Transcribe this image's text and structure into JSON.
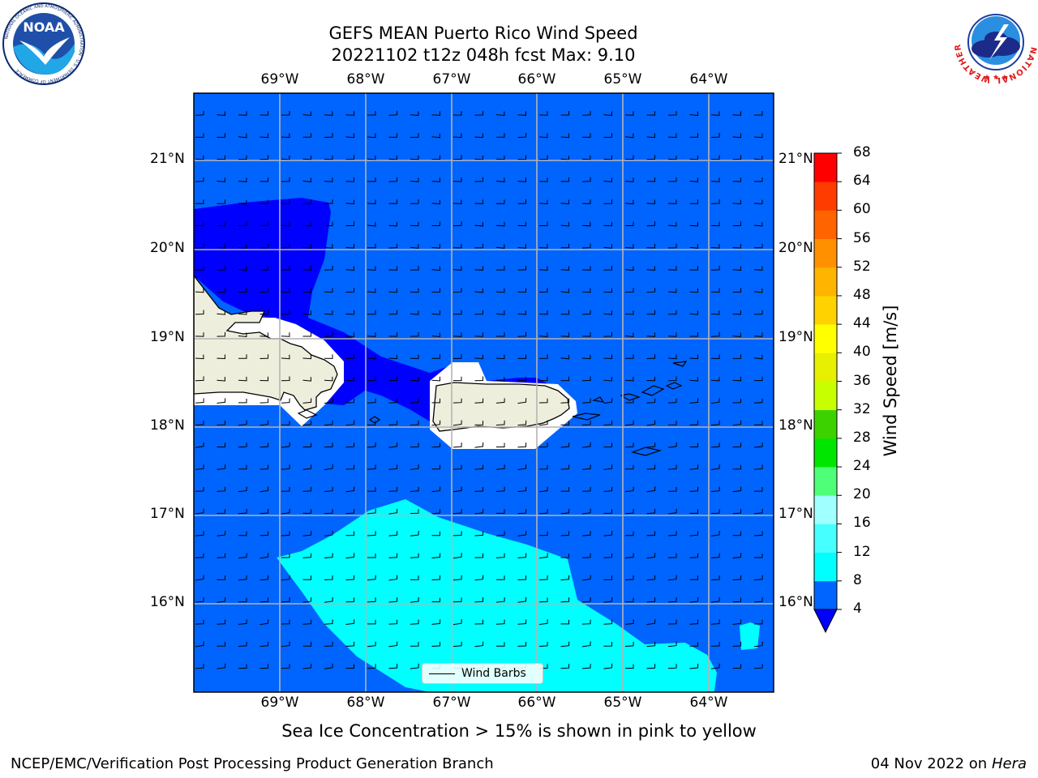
{
  "title": {
    "line1": "GEFS MEAN Puerto Rico Wind Speed",
    "line2": "20221102 t12z 048h fcst   Max: 9.10"
  },
  "logos": {
    "noaa": {
      "text": "NOAA",
      "ring_text": "NATIONAL OCEANIC AND ATMOSPHERIC ADMINISTRATION · U.S. DEPARTMENT OF COMMERCE"
    },
    "nws": {
      "ring_text": "NATIONAL WEATHER SERVICE"
    }
  },
  "map": {
    "lon_labels": [
      "69°W",
      "68°W",
      "67°W",
      "66°W",
      "65°W",
      "64°W"
    ],
    "lat_labels": [
      "21°N",
      "20°N",
      "19°N",
      "18°N",
      "17°N",
      "16°N"
    ],
    "colors": {
      "band_4_8": "#0064ff",
      "band_below_4": "#0000ff",
      "band_8_12": "#00ffff",
      "land": "#eeeedc",
      "masked": "#ffffff",
      "grid": "#b4b4b4"
    }
  },
  "legend": {
    "label": "Wind Barbs"
  },
  "colorbar": {
    "label": "Wind Speed [m/s]",
    "ticks": [
      "68",
      "64",
      "60",
      "56",
      "52",
      "48",
      "44",
      "40",
      "36",
      "32",
      "28",
      "24",
      "20",
      "16",
      "12",
      "8",
      "4"
    ],
    "colors": [
      "#0064ff",
      "#00ffff",
      "#46ffff",
      "#a0ffff",
      "#50ff78",
      "#00e600",
      "#3cd200",
      "#c8ff00",
      "#e6f000",
      "#ffff00",
      "#ffd200",
      "#ffb400",
      "#ff9000",
      "#ff6400",
      "#ff3c00",
      "#ff0000"
    ],
    "extend_color": "#0000ff"
  },
  "caption": "Sea Ice Concentration > 15% is shown in pink to yellow",
  "footer": {
    "left": "NCEP/EMC/Verification Post Processing Product Generation Branch",
    "date": "04 Nov 2022 on",
    "host": "Hera"
  }
}
